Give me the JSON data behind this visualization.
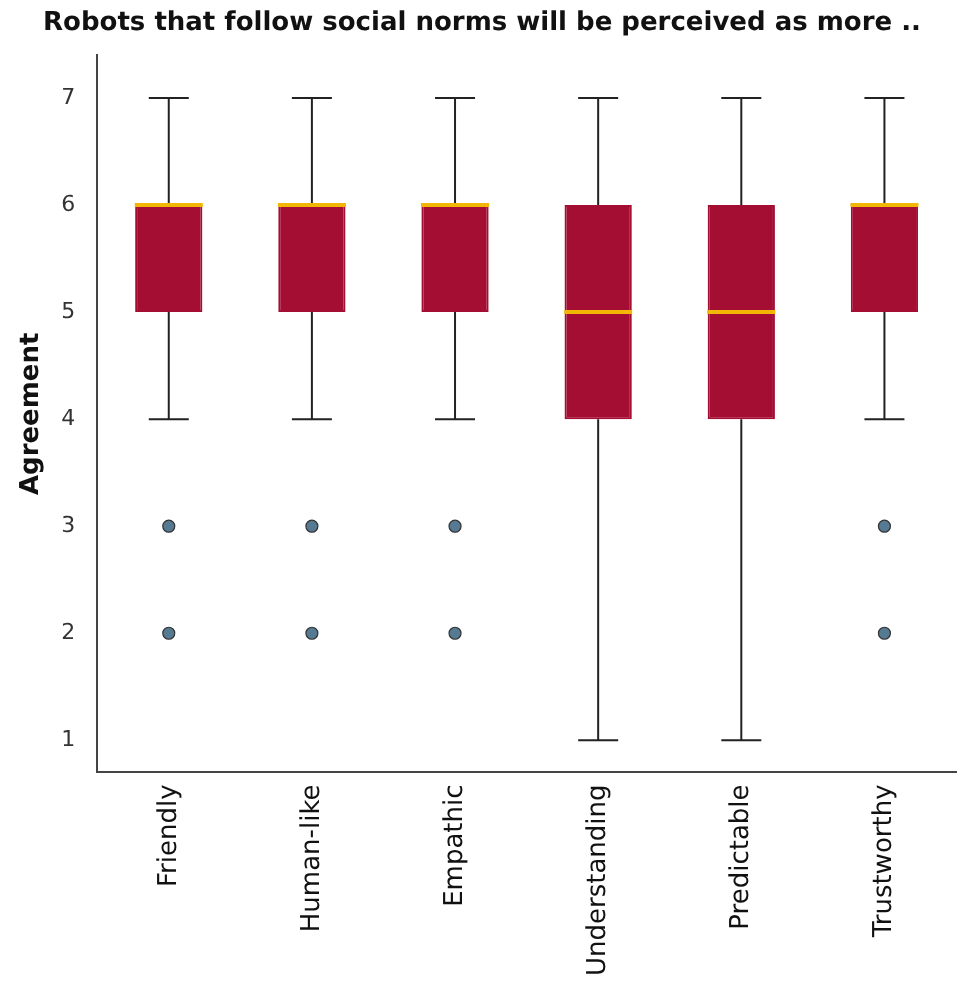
{
  "chart_data": {
    "type": "box",
    "title": "Robots that follow social norms will be perceived as more ..",
    "ylabel": "Agreement",
    "categories": [
      "Friendly",
      "Human-like",
      "Empathic",
      "Understanding",
      "Predictable",
      "Trustworthy"
    ],
    "series": [
      {
        "color": "#a50e33",
        "boxes": [
          {
            "low": 4,
            "q1": 5,
            "median": 6,
            "q3": 6,
            "high": 7,
            "outliers": [
              2,
              3
            ]
          },
          {
            "low": 4,
            "q1": 5,
            "median": 6,
            "q3": 6,
            "high": 7,
            "outliers": [
              2,
              3
            ]
          },
          {
            "low": 4,
            "q1": 5,
            "median": 6,
            "q3": 6,
            "high": 7,
            "outliers": [
              2,
              3
            ]
          },
          {
            "low": 1,
            "q1": 4,
            "median": 5,
            "q3": 6,
            "high": 7
          },
          {
            "low": 1,
            "q1": 4,
            "median": 5,
            "q3": 6,
            "high": 7
          },
          {
            "low": 4,
            "q1": 5,
            "median": 6,
            "q3": 6,
            "high": 7,
            "outliers": [
              2,
              3
            ]
          }
        ]
      }
    ],
    "ylim": [
      0.7,
      7.4
    ],
    "yticks": [
      1,
      2,
      3,
      4,
      5,
      6,
      7
    ],
    "grid": false,
    "legend": false,
    "marker": "circle"
  }
}
